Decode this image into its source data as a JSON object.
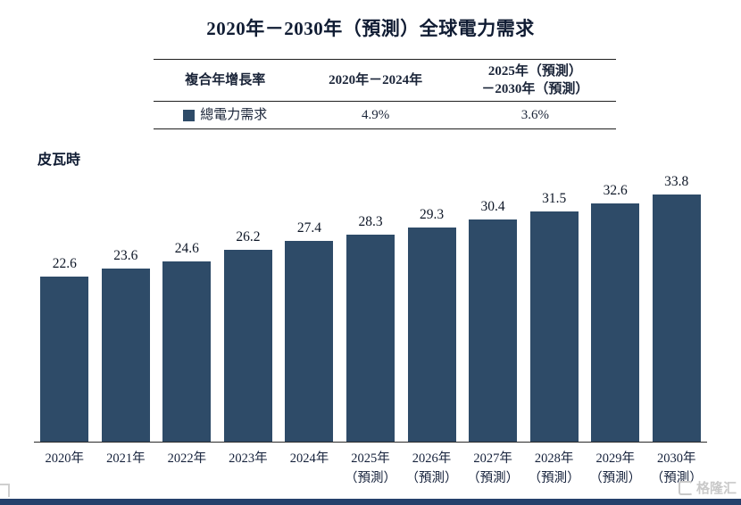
{
  "title": "2020年－2030年（預測）全球電力需求",
  "table": {
    "header_col1": "複合年增長率",
    "header_col2": "2020年－2024年",
    "header_col3_line1": "2025年（預測）",
    "header_col3_line2": "－2030年（預測）",
    "row_label": "總電力需求",
    "cagr_2020_2024": "4.9%",
    "cagr_2025_2030": "3.6%"
  },
  "watermark": "格隆汇",
  "colors": {
    "bar": "#2e4b68",
    "axis": "#2a2a2a",
    "strip": "#24406b",
    "watermark": "#c9c9c9"
  },
  "chart_data": {
    "type": "bar",
    "title": "2020年－2030年（預測）全球電力需求",
    "series_name": "總電力需求",
    "categories": [
      "2020年",
      "2021年",
      "2022年",
      "2023年",
      "2024年",
      "2025年",
      "2026年",
      "2027年",
      "2028年",
      "2029年",
      "2030年"
    ],
    "category_sublabels": [
      "",
      "",
      "",
      "",
      "",
      "（預測）",
      "（預測）",
      "（預測）",
      "（預測）",
      "（預測）",
      "（預測）"
    ],
    "values": [
      22.6,
      23.6,
      24.6,
      26.2,
      27.4,
      28.3,
      29.3,
      30.4,
      31.5,
      32.6,
      33.8
    ],
    "xlabel": "",
    "ylabel": "皮瓦時",
    "ylim": [
      0,
      35
    ],
    "grid": false,
    "legend_position": "top-table",
    "data_labels": true,
    "annotations": {
      "cagr_2020_2024": "4.9%",
      "cagr_2025_2030": "3.6%"
    },
    "bar_color": "#2e4b68"
  }
}
